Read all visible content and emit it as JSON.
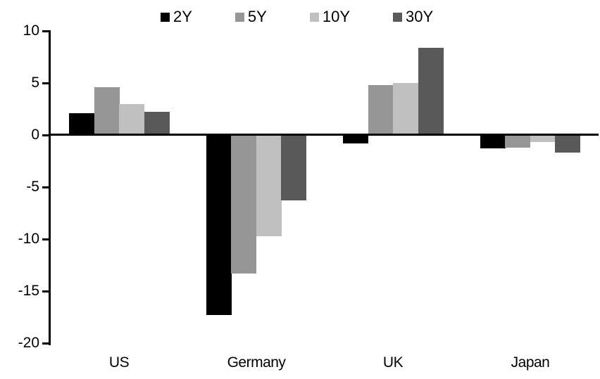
{
  "chart_data": {
    "type": "bar",
    "title": "",
    "categories": [
      "US",
      "Germany",
      "UK",
      "Japan"
    ],
    "series": [
      {
        "name": "2Y",
        "color": "#000000",
        "values": [
          2.1,
          -17.3,
          -0.8,
          -1.3
        ]
      },
      {
        "name": "5Y",
        "color": "#969696",
        "values": [
          4.6,
          -13.3,
          4.8,
          -1.2
        ]
      },
      {
        "name": "10Y",
        "color": "#c0c0c0",
        "values": [
          3.0,
          -9.7,
          5.0,
          -0.7
        ]
      },
      {
        "name": "30Y",
        "color": "#595959",
        "values": [
          2.2,
          -6.3,
          8.4,
          -1.7
        ]
      }
    ],
    "ylim": [
      -20,
      10
    ],
    "yticks": [
      10,
      5,
      0,
      -5,
      -10,
      -15,
      -20
    ],
    "xlabel": "",
    "ylabel": "",
    "grid": false,
    "legend_position": "top",
    "background_color": "#ffffff",
    "axis_color": "#000000"
  }
}
